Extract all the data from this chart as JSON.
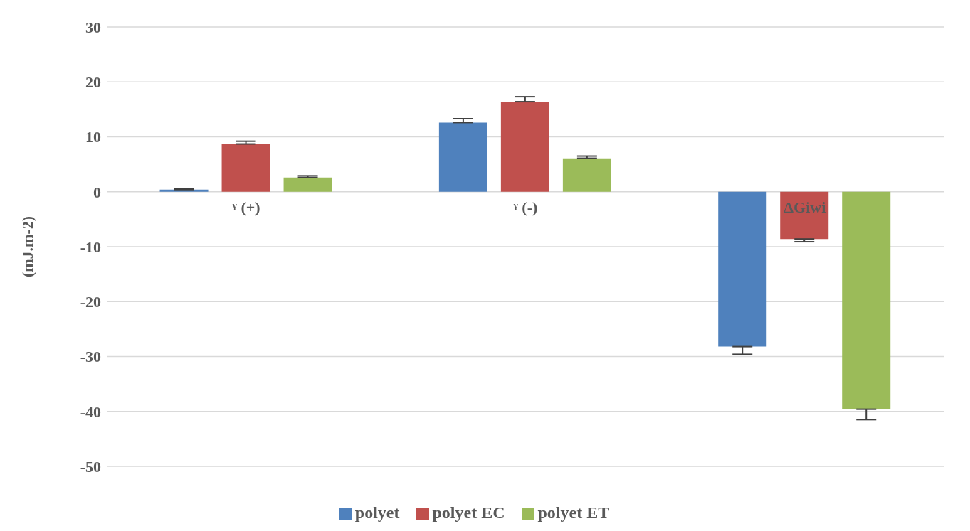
{
  "chart_data": {
    "type": "bar",
    "ylabel": "(mJ.m-2)",
    "categories": [
      "ᵞ (+)",
      "ᵞ (-)",
      "ΔGiwi"
    ],
    "series": [
      {
        "name": "polyet",
        "color": "#4f81bd",
        "values": [
          0.4,
          12.6,
          -28.2
        ],
        "errors": [
          [
            0.4,
            0.6
          ],
          [
            12.6,
            13.3
          ],
          [
            -29.6,
            -28.2
          ]
        ]
      },
      {
        "name": "polyet EC",
        "color": "#c0504d",
        "values": [
          8.7,
          16.4,
          -8.6
        ],
        "errors": [
          [
            8.7,
            9.2
          ],
          [
            16.4,
            17.3
          ],
          [
            -9.1,
            -8.6
          ]
        ]
      },
      {
        "name": "polyet ET",
        "color": "#9bbb59",
        "values": [
          2.6,
          6.1,
          -39.6
        ],
        "errors": [
          [
            2.6,
            2.9
          ],
          [
            6.1,
            6.5
          ],
          [
            -41.5,
            -39.6
          ]
        ]
      }
    ],
    "ylim": [
      -50,
      30
    ],
    "yticks": [
      -50,
      -40,
      -30,
      -20,
      -10,
      0,
      10,
      20,
      30
    ],
    "grid": "y",
    "legend": "bottom"
  }
}
